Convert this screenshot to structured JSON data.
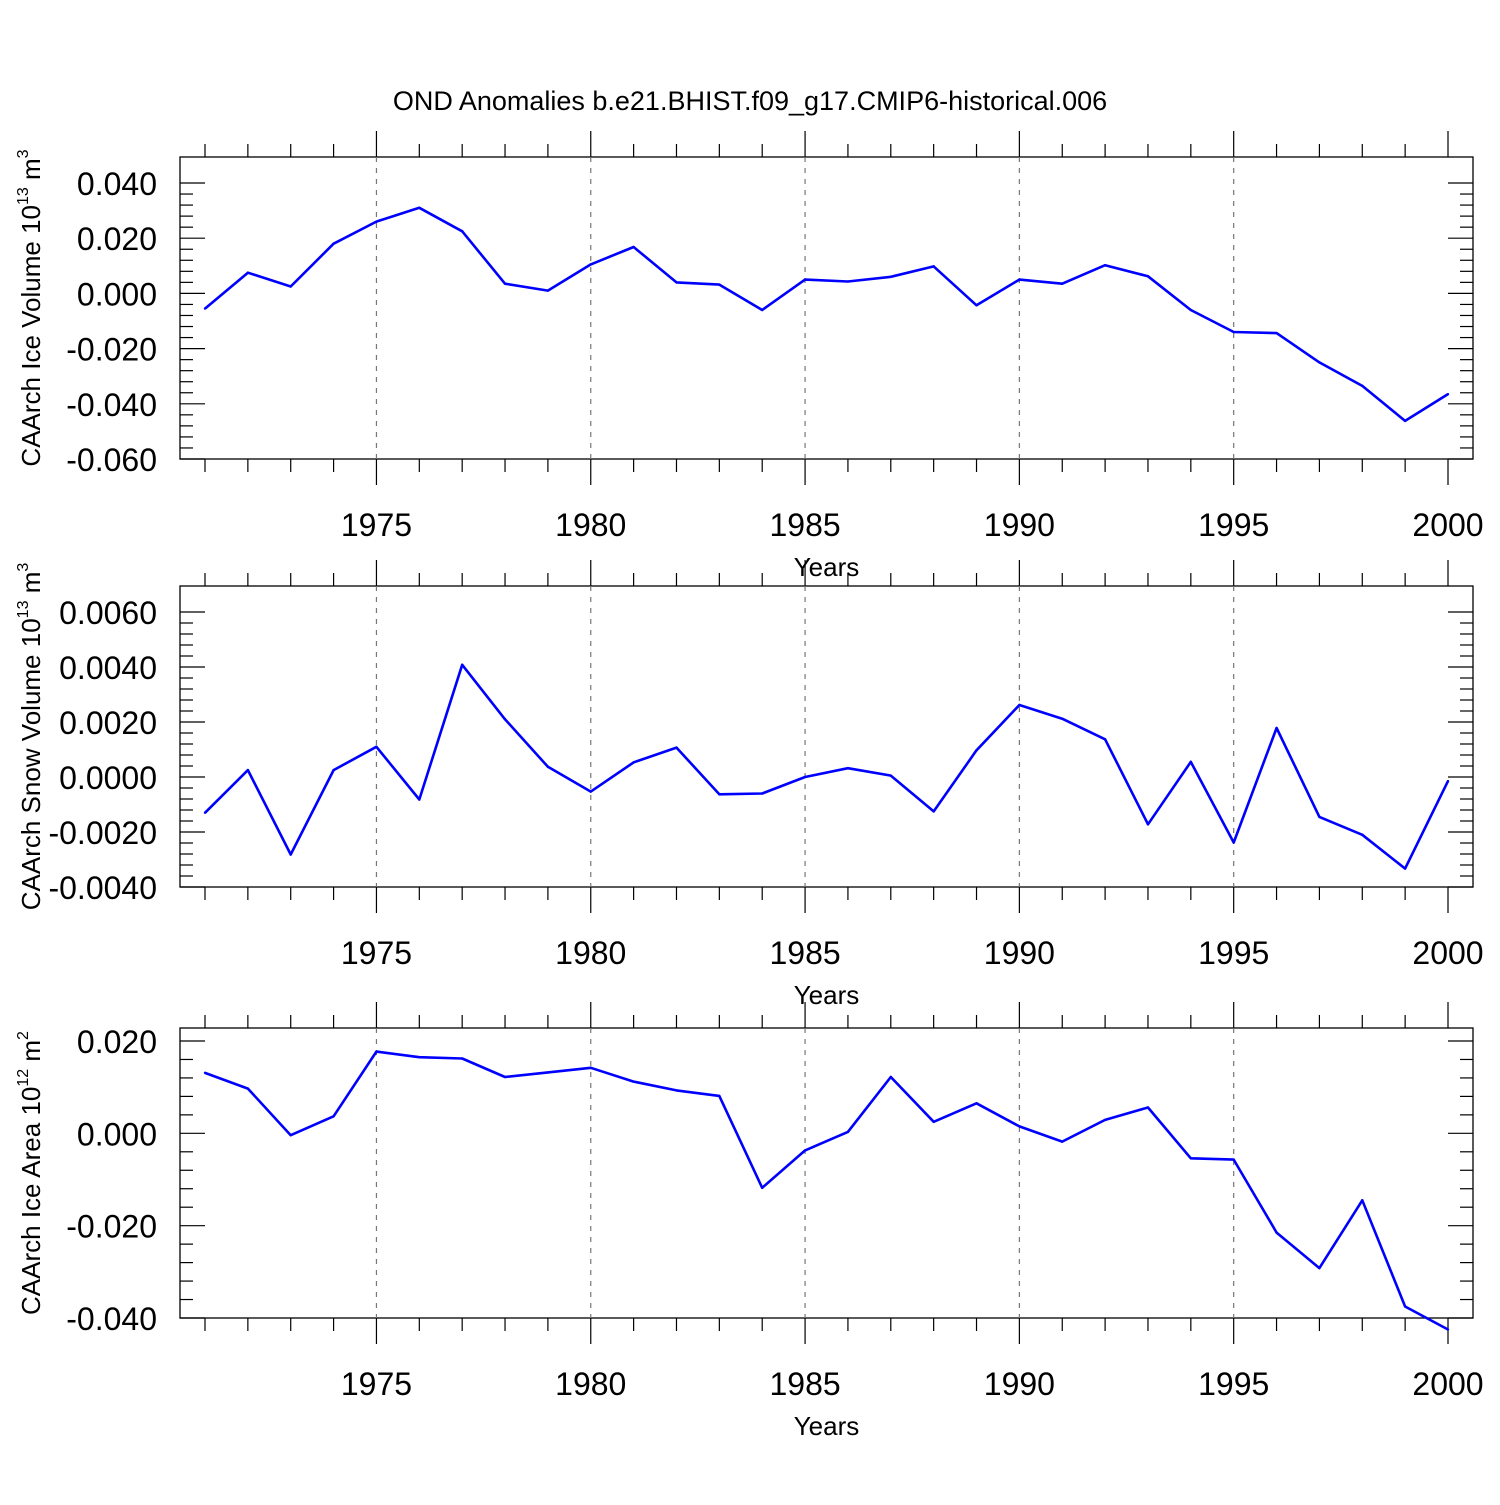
{
  "title": "OND Anomalies b.e21.BHIST.f09_g17.CMIP6-historical.006",
  "chart_data": [
    {
      "type": "line",
      "title": "",
      "xlabel": "Years",
      "ylabel": {
        "base": "CAArch Ice Volume 10",
        "sup": "13",
        "unit": "m",
        "unit_sup": "3"
      },
      "xlim": [
        1971,
        2000
      ],
      "ylim": [
        -0.06,
        0.04
      ],
      "xticks": [
        1975,
        1980,
        1985,
        1990,
        1995,
        2000
      ],
      "xtick_labels": [
        "1975",
        "1980",
        "1985",
        "1990",
        "1995",
        "2000"
      ],
      "yticks": [
        0.04,
        0.02,
        0.0,
        -0.02,
        -0.04,
        -0.06
      ],
      "ytick_labels": [
        "0.040",
        "0.020",
        "0.000",
        "-0.020",
        "-0.040",
        "-0.060"
      ],
      "grid": "vertical-dashed",
      "color": "#0000ff",
      "x": [
        1971,
        1972,
        1973,
        1974,
        1975,
        1976,
        1977,
        1978,
        1979,
        1980,
        1981,
        1982,
        1983,
        1984,
        1985,
        1986,
        1987,
        1988,
        1989,
        1990,
        1991,
        1992,
        1993,
        1994,
        1995,
        1996,
        1997,
        1998,
        1999,
        2000
      ],
      "values": [
        -0.0055,
        0.0075,
        0.0025,
        0.018,
        0.026,
        0.031,
        0.0225,
        0.0035,
        0.001,
        0.0105,
        0.0168,
        0.004,
        0.0032,
        -0.006,
        0.005,
        0.0043,
        0.006,
        0.0098,
        -0.0043,
        0.005,
        0.0035,
        0.0102,
        0.0062,
        -0.006,
        -0.014,
        -0.0144,
        -0.025,
        -0.0335,
        -0.0462,
        -0.0365
      ]
    },
    {
      "type": "line",
      "title": "",
      "xlabel": "Years",
      "ylabel": {
        "base": "CAArch Snow Volume 10",
        "sup": "13",
        "unit": "m",
        "unit_sup": "3"
      },
      "xlim": [
        1971,
        2000
      ],
      "ylim": [
        -0.004,
        0.006
      ],
      "xticks": [
        1975,
        1980,
        1985,
        1990,
        1995,
        2000
      ],
      "xtick_labels": [
        "1975",
        "1980",
        "1985",
        "1990",
        "1995",
        "2000"
      ],
      "yticks": [
        0.006,
        0.004,
        0.002,
        0.0,
        -0.002,
        -0.004
      ],
      "ytick_labels": [
        "0.0060",
        "0.0040",
        "0.0020",
        "0.0000",
        "-0.0020",
        "-0.0040"
      ],
      "grid": "vertical-dashed",
      "color": "#0000ff",
      "x": [
        1971,
        1972,
        1973,
        1974,
        1975,
        1976,
        1977,
        1978,
        1979,
        1980,
        1981,
        1982,
        1983,
        1984,
        1985,
        1986,
        1987,
        1988,
        1989,
        1990,
        1991,
        1992,
        1993,
        1994,
        1995,
        1996,
        1997,
        1998,
        1999,
        2000
      ],
      "values": [
        -0.0013,
        0.00025,
        -0.00282,
        0.00025,
        0.0011,
        -0.00082,
        0.00408,
        0.0021,
        0.00037,
        -0.00053,
        0.00053,
        0.00107,
        -0.00063,
        -0.0006,
        0.0,
        0.00032,
        5e-05,
        -0.00125,
        0.00097,
        0.00262,
        0.00212,
        0.00137,
        -0.00172,
        0.00055,
        -0.00238,
        0.00178,
        -0.00145,
        -0.0021,
        -0.00333,
        -0.00015
      ]
    },
    {
      "type": "line",
      "title": "",
      "xlabel": "Years",
      "ylabel": {
        "base": "CAArch Ice Area 10",
        "sup": "12",
        "unit": "m",
        "unit_sup": "2"
      },
      "xlim": [
        1971,
        2000
      ],
      "ylim": [
        -0.05,
        0.025
      ],
      "xticks": [
        1975,
        1980,
        1985,
        1990,
        1995,
        2000
      ],
      "xtick_labels": [
        "1975",
        "1980",
        "1985",
        "1990",
        "1995",
        "2000"
      ],
      "yticks": [
        0.02,
        0.0,
        -0.02,
        -0.04
      ],
      "ytick_labels": [
        "0.020",
        "0.000",
        "-0.020",
        "-0.040"
      ],
      "grid": "vertical-dashed",
      "color": "#0000ff",
      "x": [
        1971,
        1972,
        1973,
        1974,
        1975,
        1976,
        1977,
        1978,
        1979,
        1980,
        1981,
        1982,
        1983,
        1984,
        1985,
        1986,
        1987,
        1988,
        1989,
        1990,
        1991,
        1992,
        1993,
        1994,
        1995,
        1996,
        1997,
        1998,
        1999,
        2000
      ],
      "values": [
        0.0131,
        0.0097,
        -0.0004,
        0.0037,
        0.0177,
        0.0165,
        0.0162,
        0.0122,
        0.0132,
        0.0142,
        0.0112,
        0.0093,
        0.0081,
        -0.0118,
        -0.0037,
        0.0003,
        0.0122,
        0.0025,
        0.0065,
        0.0015,
        -0.0018,
        0.0029,
        0.0056,
        -0.0054,
        -0.0057,
        -0.0215,
        -0.0292,
        -0.0145,
        -0.0375,
        -0.0425
      ]
    }
  ]
}
